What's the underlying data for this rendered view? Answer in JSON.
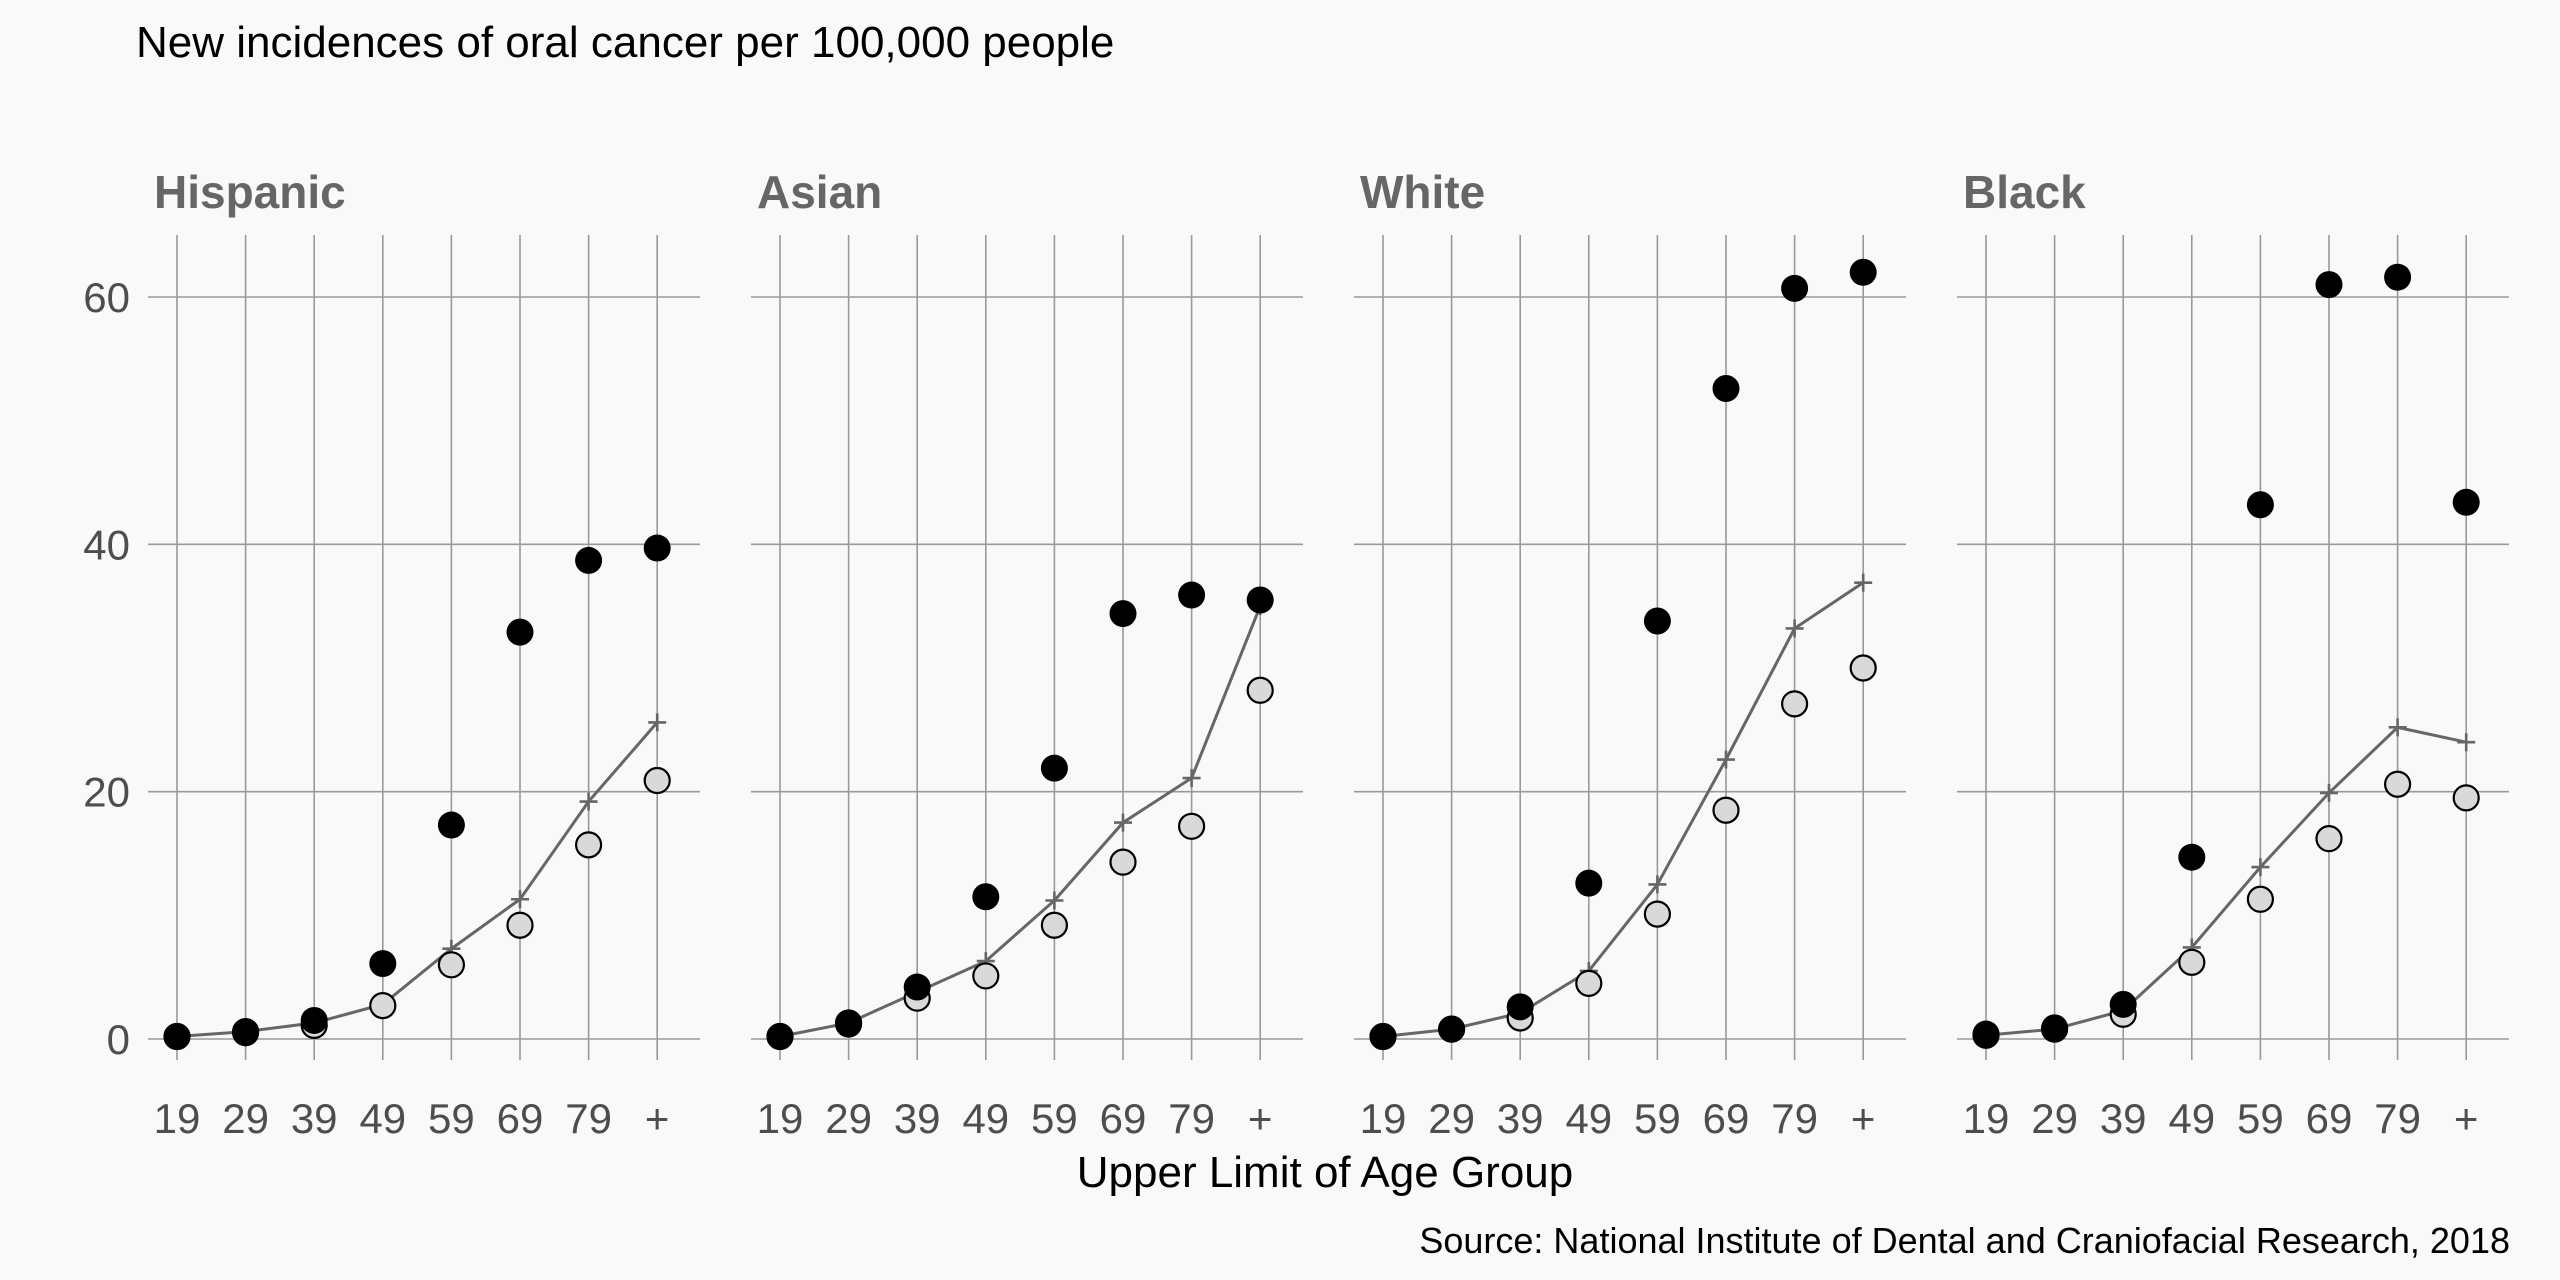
{
  "chart_data": {
    "type": "scatter",
    "title": "New incidences of oral cancer per 100,000 people",
    "xlabel": "Upper Limit of Age Group",
    "source": "Source: National Institute of Dental and Craniofacial Research, 2018",
    "categories": [
      "19",
      "29",
      "39",
      "49",
      "59",
      "69",
      "79",
      "+"
    ],
    "ylim": [
      0,
      65
    ],
    "yticks": [
      0,
      20,
      40,
      60
    ],
    "grid": true,
    "colors": {
      "black_point": "#000000",
      "light_point": "#d9d9d9",
      "line": "#666666",
      "grid": "#999999"
    },
    "panels": [
      {
        "name": "Hispanic",
        "black_points": [
          0.2,
          0.5,
          1.5,
          6.1,
          17.3,
          32.9,
          38.7,
          39.7
        ],
        "cross_line": [
          0.2,
          0.6,
          1.3,
          2.8,
          7.3,
          11.3,
          19.2,
          25.6
        ],
        "light_points": [
          0.2,
          0.6,
          1.1,
          2.7,
          6.0,
          9.2,
          15.7,
          20.9
        ]
      },
      {
        "name": "Asian",
        "black_points": [
          0.2,
          1.2,
          4.2,
          11.5,
          21.9,
          34.4,
          35.9,
          35.5
        ],
        "cross_line": [
          0.2,
          1.3,
          3.8,
          6.3,
          11.2,
          17.5,
          21.1,
          35.0
        ],
        "light_points": [
          0.2,
          1.3,
          3.3,
          5.1,
          9.2,
          14.3,
          17.2,
          28.2
        ]
      },
      {
        "name": "White",
        "black_points": [
          0.2,
          0.8,
          2.6,
          12.6,
          33.8,
          52.6,
          60.7,
          62.0
        ],
        "cross_line": [
          0.2,
          0.8,
          2.1,
          5.5,
          12.5,
          22.6,
          33.2,
          36.9
        ],
        "light_points": [
          0.2,
          0.8,
          1.7,
          4.5,
          10.1,
          18.5,
          27.1,
          30.0
        ]
      },
      {
        "name": "Black",
        "black_points": [
          0.4,
          0.9,
          2.8,
          14.7,
          43.2,
          61.0,
          61.6,
          43.4
        ],
        "cross_line": [
          0.3,
          0.8,
          2.3,
          7.4,
          13.9,
          19.9,
          25.2,
          24.0
        ],
        "light_points": [
          0.3,
          0.8,
          2.0,
          6.2,
          11.3,
          16.2,
          20.6,
          19.5
        ]
      }
    ]
  }
}
